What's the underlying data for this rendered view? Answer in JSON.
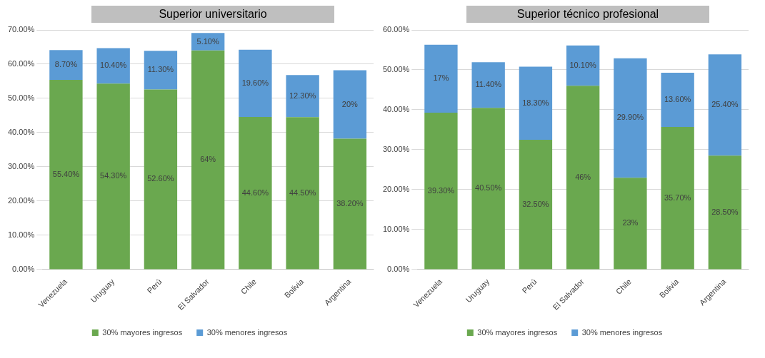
{
  "chart_data": [
    {
      "type": "bar",
      "title": "Superior universitario",
      "stacked": true,
      "grid": "y",
      "legend": "bottom",
      "categories": [
        "Venezuela",
        "Uruguay",
        "Perú",
        "El Salvador",
        "Chile",
        "Bolivia",
        "Argentina"
      ],
      "ylim": [
        0,
        70
      ],
      "yticks": [
        {
          "value": 0,
          "label": "0.00%"
        },
        {
          "value": 10,
          "label": "10.00%"
        },
        {
          "value": 20,
          "label": "20.00%"
        },
        {
          "value": 30,
          "label": "30.00%"
        },
        {
          "value": 40,
          "label": "40.00%"
        },
        {
          "value": 50,
          "label": "50.00%"
        },
        {
          "value": 60,
          "label": "60.00%"
        },
        {
          "value": 70,
          "label": "70.00%"
        }
      ],
      "series": [
        {
          "name": "30% mayores ingresos",
          "color": "#6aa84f",
          "values": [
            55.4,
            54.3,
            52.6,
            64,
            44.6,
            44.5,
            38.2
          ],
          "value_labels": [
            "55.40%",
            "54.30%",
            "52.60%",
            "64%",
            "44.60%",
            "44.50%",
            "38.20%"
          ]
        },
        {
          "name": "30% menores ingresos",
          "color": "#5b9bd5",
          "values": [
            8.7,
            10.4,
            11.3,
            5.1,
            19.6,
            12.3,
            20
          ],
          "value_labels": [
            "8.70%",
            "10.40%",
            "11.30%",
            "5.10%",
            "19.60%",
            "12.30%",
            "20%"
          ]
        }
      ]
    },
    {
      "type": "bar",
      "title": "Superior técnico profesional",
      "stacked": true,
      "grid": "y",
      "legend": "bottom",
      "categories": [
        "Venezuela",
        "Uruguay",
        "Perú",
        "El Salvador",
        "Chile",
        "Bolivia",
        "Argentina"
      ],
      "ylim": [
        0,
        60
      ],
      "yticks": [
        {
          "value": 0,
          "label": "0.00%"
        },
        {
          "value": 10,
          "label": "10.00%"
        },
        {
          "value": 20,
          "label": "20.00%"
        },
        {
          "value": 30,
          "label": "30.00%"
        },
        {
          "value": 40,
          "label": "40.00%"
        },
        {
          "value": 50,
          "label": "50.00%"
        },
        {
          "value": 60,
          "label": "60.00%"
        }
      ],
      "series": [
        {
          "name": "30% mayores ingresos",
          "color": "#6aa84f",
          "values": [
            39.3,
            40.5,
            32.5,
            46,
            23,
            35.7,
            28.5
          ],
          "value_labels": [
            "39.30%",
            "40.50%",
            "32.50%",
            "46%",
            "23%",
            "35.70%",
            "28.50%"
          ]
        },
        {
          "name": "30% menores ingresos",
          "color": "#5b9bd5",
          "values": [
            17,
            11.4,
            18.3,
            10.1,
            29.9,
            13.6,
            25.4
          ],
          "value_labels": [
            "17%",
            "11.40%",
            "18.30%",
            "10.10%",
            "29.90%",
            "13.60%",
            "25.40%"
          ]
        }
      ]
    }
  ]
}
